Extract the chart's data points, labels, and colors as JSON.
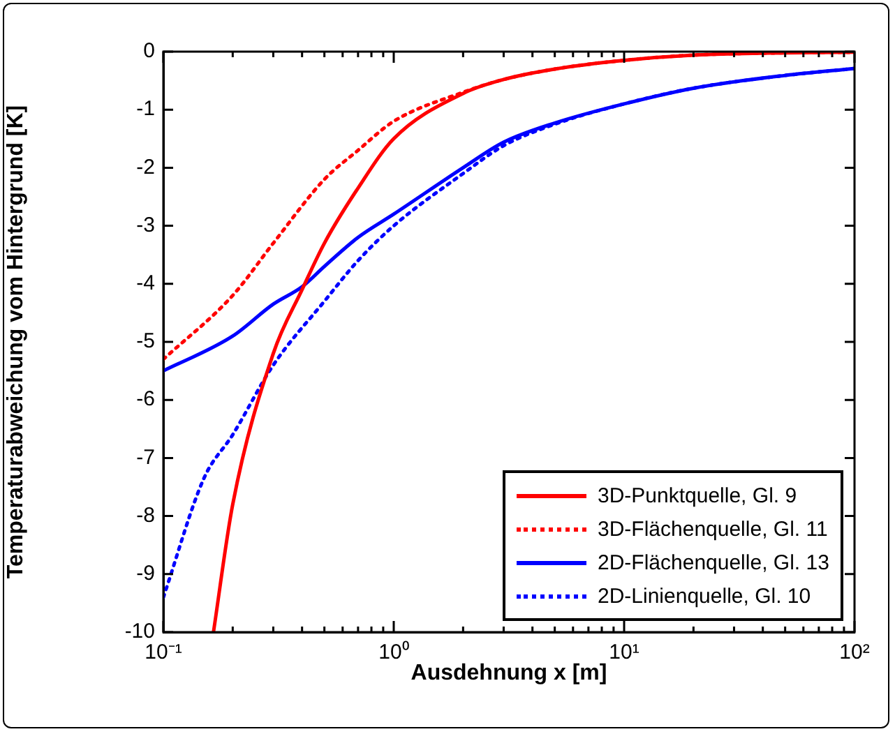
{
  "chart_data": {
    "type": "line",
    "xlabel": "Ausdehnung x [m]",
    "ylabel": "Temperaturabweichung vom Hintergrund [K]",
    "log": "x",
    "grid": false,
    "legend": "bottom right",
    "marker": "none",
    "xlim": [
      0.1,
      100
    ],
    "ylim": [
      -10,
      0
    ],
    "xticks": [
      {
        "value": 0.1,
        "label": "10⁻¹"
      },
      {
        "value": 0.2,
        "label": null
      },
      {
        "value": 0.3,
        "label": null
      },
      {
        "value": 0.4,
        "label": null
      },
      {
        "value": 0.5,
        "label": null
      },
      {
        "value": 0.6,
        "label": null
      },
      {
        "value": 0.7,
        "label": null
      },
      {
        "value": 0.8,
        "label": null
      },
      {
        "value": 0.9,
        "label": null
      },
      {
        "value": 1,
        "label": "10⁰"
      },
      {
        "value": 2,
        "label": null
      },
      {
        "value": 3,
        "label": null
      },
      {
        "value": 4,
        "label": null
      },
      {
        "value": 5,
        "label": null
      },
      {
        "value": 6,
        "label": null
      },
      {
        "value": 7,
        "label": null
      },
      {
        "value": 8,
        "label": null
      },
      {
        "value": 9,
        "label": null
      },
      {
        "value": 10,
        "label": "10¹"
      },
      {
        "value": 20,
        "label": null
      },
      {
        "value": 30,
        "label": null
      },
      {
        "value": 40,
        "label": null
      },
      {
        "value": 50,
        "label": null
      },
      {
        "value": 60,
        "label": null
      },
      {
        "value": 70,
        "label": null
      },
      {
        "value": 80,
        "label": null
      },
      {
        "value": 90,
        "label": null
      },
      {
        "value": 100,
        "label": "10²"
      }
    ],
    "yticks": [
      -10,
      -9,
      -8,
      -7,
      -6,
      -5,
      -4,
      -3,
      -2,
      -1,
      0
    ],
    "series": [
      {
        "name": "3D-Punktquelle, Gl. 9",
        "color": "#ff0000",
        "line_style": "solid",
        "x": [
          0.165,
          0.2,
          0.3,
          0.4,
          0.5,
          0.7,
          1,
          2,
          3,
          5,
          10,
          20,
          50,
          100
        ],
        "values": [
          -10,
          -7.8,
          -5.2,
          -4.1,
          -3.3,
          -2.35,
          -1.5,
          -0.72,
          -0.48,
          -0.3,
          -0.15,
          -0.06,
          -0.02,
          -0.01
        ]
      },
      {
        "name": "3D-Flächenquelle, Gl. 11",
        "color": "#ff0000",
        "line_style": "dotted",
        "x": [
          0.1,
          0.2,
          0.3,
          0.5,
          0.7,
          1,
          2,
          3,
          5,
          10,
          20,
          50,
          100
        ],
        "values": [
          -5.3,
          -4.2,
          -3.3,
          -2.2,
          -1.7,
          -1.2,
          -0.7,
          -0.48,
          -0.3,
          -0.15,
          -0.06,
          -0.02,
          -0.01
        ]
      },
      {
        "name": "2D-Flächenquelle, Gl. 13",
        "color": "#0000ff",
        "line_style": "solid",
        "x": [
          0.1,
          0.2,
          0.3,
          0.4,
          0.5,
          0.7,
          1,
          2,
          3,
          5,
          10,
          20,
          50,
          100
        ],
        "values": [
          -5.5,
          -4.9,
          -4.35,
          -4.05,
          -3.7,
          -3.2,
          -2.8,
          -2.0,
          -1.56,
          -1.23,
          -0.9,
          -0.63,
          -0.41,
          -0.29
        ]
      },
      {
        "name": "2D-Linienquelle, Gl. 10",
        "color": "#0000ff",
        "line_style": "dotted",
        "x": [
          0.1,
          0.15,
          0.2,
          0.3,
          0.5,
          0.7,
          1,
          2,
          3,
          5,
          10,
          20,
          50,
          100
        ],
        "values": [
          -9.4,
          -7.35,
          -6.6,
          -5.4,
          -4.3,
          -3.6,
          -3.0,
          -2.1,
          -1.62,
          -1.25,
          -0.9,
          -0.63,
          -0.41,
          -0.29
        ]
      }
    ]
  }
}
